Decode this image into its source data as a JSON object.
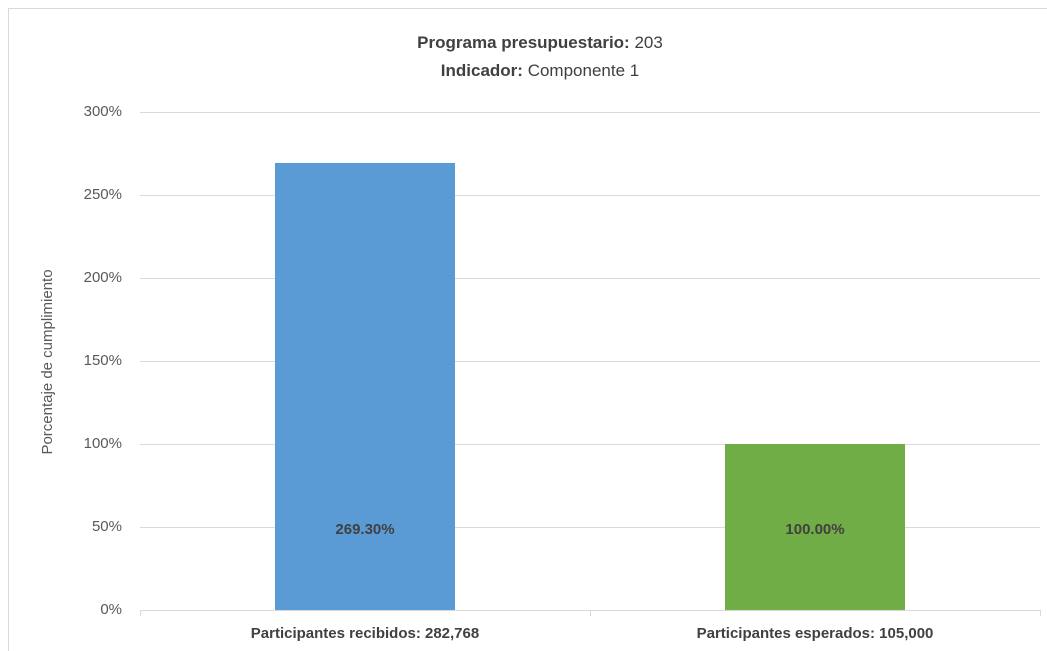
{
  "chart_data": {
    "type": "bar",
    "title_lines": [
      {
        "label": "Programa presupuestario:",
        "value": "203"
      },
      {
        "label": "Indicador:",
        "value": "Componente 1"
      }
    ],
    "y_label": "Porcentaje de cumplimiento",
    "categories": [
      "Participantes recibidos: 282,768",
      "Participantes esperados: 105,000"
    ],
    "values": [
      269.3,
      100
    ],
    "value_labels": [
      "269.30%",
      "100.00%"
    ],
    "colors": [
      "#5b9bd5",
      "#70ad47"
    ],
    "ylim": [
      0,
      300
    ],
    "yticks": [
      {
        "value": 0,
        "label": "0%"
      },
      {
        "value": 50,
        "label": "50%"
      },
      {
        "value": 100,
        "label": "100%"
      },
      {
        "value": 150,
        "label": "150%"
      },
      {
        "value": 200,
        "label": "200%"
      },
      {
        "value": 250,
        "label": "250%"
      },
      {
        "value": 300,
        "label": "300%"
      }
    ],
    "grid": true
  }
}
